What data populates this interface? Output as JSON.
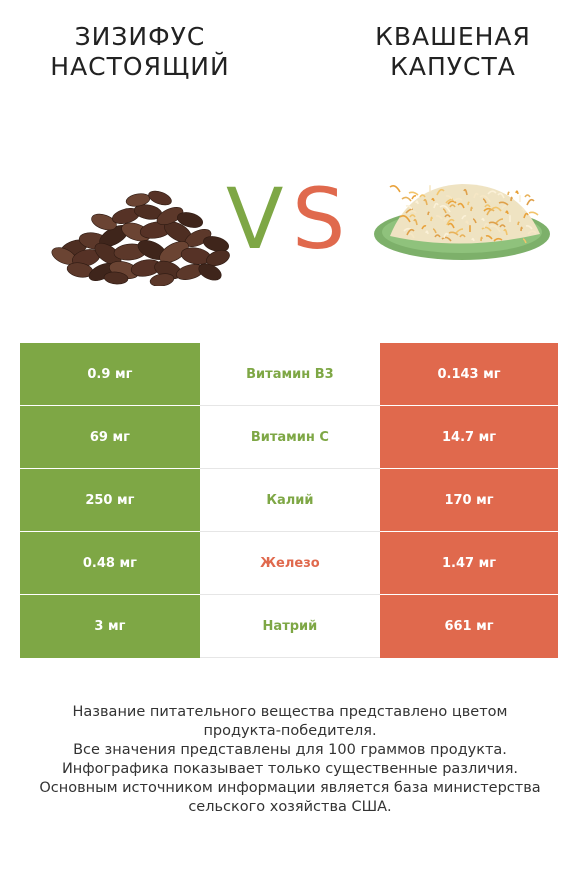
{
  "header": {
    "left_title": "ЗИЗИФУС НАСТОЯЩИЙ",
    "right_title": "КВАШЕНАЯ КАПУСТА",
    "vs_left": "V",
    "vs_right": "S"
  },
  "colors": {
    "left_accent": "#7ea745",
    "right_accent": "#e0694d"
  },
  "images": {
    "left_icon": "cocoa-beans-pile",
    "right_icon": "sauerkraut-plate"
  },
  "rows": [
    {
      "left": "0.9 мг",
      "nutrient": "Витамин B3",
      "right": "0.143 мг",
      "winner": "left"
    },
    {
      "left": "69 мг",
      "nutrient": "Витамин C",
      "right": "14.7 мг",
      "winner": "left"
    },
    {
      "left": "250 мг",
      "nutrient": "Калий",
      "right": "170 мг",
      "winner": "left"
    },
    {
      "left": "0.48 мг",
      "nutrient": "Железо",
      "right": "1.47 мг",
      "winner": "right"
    },
    {
      "left": "3 мг",
      "nutrient": "Натрий",
      "right": "661 мг",
      "winner": "left"
    }
  ],
  "footer": {
    "line1": "Название питательного вещества представлено цветом",
    "line2": "продукта-победителя.",
    "line3": "Все значения представлены для 100 граммов продукта.",
    "line4": "Инфографика показывает только существенные различия.",
    "line5": "Основным источником информации является база министерства",
    "line6": "сельского хозяйства США."
  }
}
